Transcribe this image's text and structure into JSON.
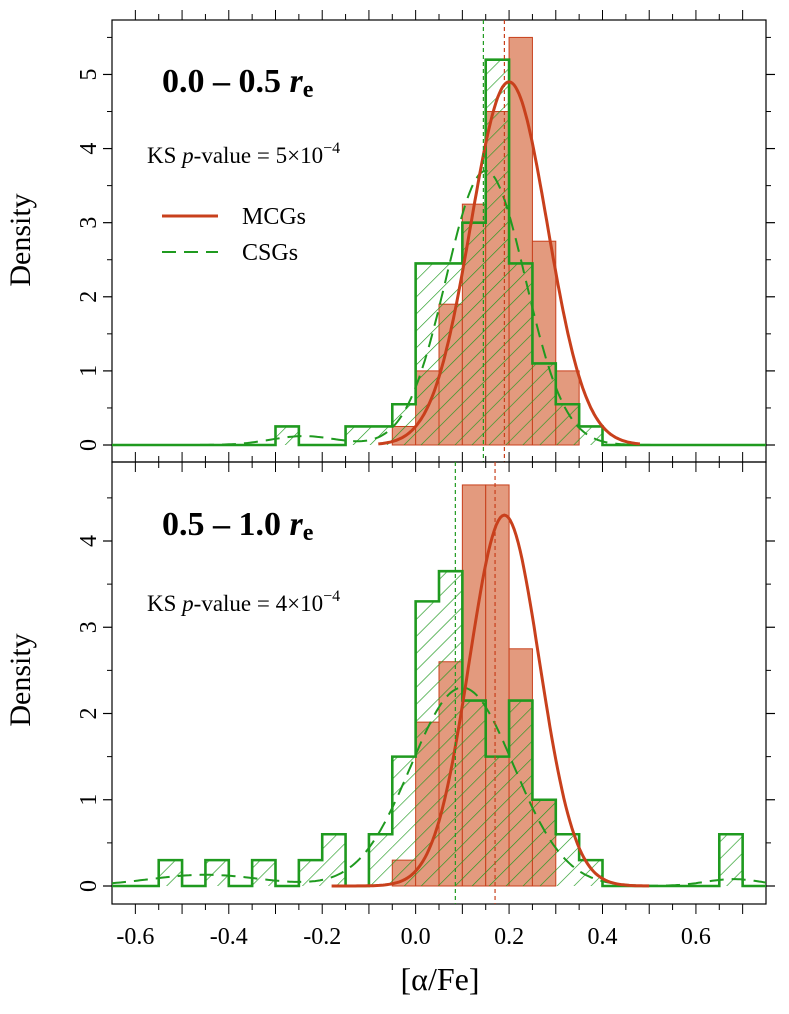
{
  "chart_data": {
    "type": "histogram",
    "xlabel": "[α/Fe]",
    "ylabel": "Density",
    "xlim": [
      -0.65,
      0.75
    ],
    "x_ticks": [
      "-0.6",
      "-0.4",
      "-0.2",
      "0.0",
      "0.2",
      "0.4",
      "0.6"
    ],
    "x_tick_values": [
      -0.6,
      -0.4,
      -0.2,
      0.0,
      0.2,
      0.4,
      0.6
    ],
    "bin_width": 0.05,
    "colors": {
      "mcg": "#c8401c",
      "mcg_fill": "#e39a7e",
      "csg": "#1f9a1f"
    },
    "legend": [
      {
        "name": "MCGs",
        "style": "solid"
      },
      {
        "name": "CSGs",
        "style": "dashed"
      }
    ],
    "panels": [
      {
        "title_main": "0.0 – 0.5",
        "title_r": "r",
        "title_sub": "e",
        "ks_prefix": "KS",
        "ks_p": "p",
        "ks_mid": "-value = 5×10",
        "ks_exp": "−4",
        "ylim": [
          0,
          5.6
        ],
        "y_ticks": [
          "0",
          "1",
          "2",
          "3",
          "4",
          "5"
        ],
        "y_tick_values": [
          0,
          1,
          2,
          3,
          4,
          5
        ],
        "mcg_bins": [
          {
            "x0": -0.05,
            "d": 0.25
          },
          {
            "x0": 0.0,
            "d": 1.0
          },
          {
            "x0": 0.05,
            "d": 1.9
          },
          {
            "x0": 0.1,
            "d": 3.25
          },
          {
            "x0": 0.15,
            "d": 4.5
          },
          {
            "x0": 0.2,
            "d": 5.5
          },
          {
            "x0": 0.25,
            "d": 2.75
          },
          {
            "x0": 0.3,
            "d": 1.0
          },
          {
            "x0": 0.35,
            "d": 0.0
          }
        ],
        "csg_bins": [
          {
            "x0": -0.3,
            "d": 0.25
          },
          {
            "x0": -0.25,
            "d": 0.0
          },
          {
            "x0": -0.2,
            "d": 0.0
          },
          {
            "x0": -0.15,
            "d": 0.25
          },
          {
            "x0": -0.1,
            "d": 0.25
          },
          {
            "x0": -0.05,
            "d": 0.55
          },
          {
            "x0": 0.0,
            "d": 2.45
          },
          {
            "x0": 0.05,
            "d": 2.45
          },
          {
            "x0": 0.1,
            "d": 3.0
          },
          {
            "x0": 0.15,
            "d": 5.2
          },
          {
            "x0": 0.2,
            "d": 2.45
          },
          {
            "x0": 0.25,
            "d": 1.1
          },
          {
            "x0": 0.3,
            "d": 0.55
          },
          {
            "x0": 0.35,
            "d": 0.25
          }
        ],
        "mcg_fit": {
          "mean": 0.2,
          "sd": 0.082,
          "peak": 4.9,
          "x_range": [
            -0.08,
            0.48
          ]
        },
        "csg_kde": [
          {
            "mu": 0.15,
            "sd": 0.085,
            "amp": 3.7
          },
          {
            "mu": -0.24,
            "sd": 0.07,
            "amp": 0.12
          }
        ],
        "mcg_median": 0.19,
        "csg_median": 0.145
      },
      {
        "title_main": "0.5 – 1.0",
        "title_r": "r",
        "title_sub": "e",
        "ks_prefix": "KS",
        "ks_p": "p",
        "ks_mid": "-value = 4×10",
        "ks_exp": "−4",
        "ylim": [
          0,
          4.8
        ],
        "y_ticks": [
          "0",
          "1",
          "2",
          "3",
          "4"
        ],
        "y_tick_values": [
          0,
          1,
          2,
          3,
          4
        ],
        "mcg_bins": [
          {
            "x0": -0.05,
            "d": 0.3
          },
          {
            "x0": 0.0,
            "d": 1.9
          },
          {
            "x0": 0.05,
            "d": 2.6
          },
          {
            "x0": 0.1,
            "d": 4.65
          },
          {
            "x0": 0.15,
            "d": 4.65
          },
          {
            "x0": 0.2,
            "d": 2.75
          },
          {
            "x0": 0.25,
            "d": 1.0
          },
          {
            "x0": 0.3,
            "d": 0.0
          },
          {
            "x0": 0.35,
            "d": 0.0
          }
        ],
        "csg_bins": [
          {
            "x0": -0.55,
            "d": 0.3
          },
          {
            "x0": -0.5,
            "d": 0.0
          },
          {
            "x0": -0.45,
            "d": 0.3
          },
          {
            "x0": -0.4,
            "d": 0.0
          },
          {
            "x0": -0.35,
            "d": 0.3
          },
          {
            "x0": -0.3,
            "d": 0.0
          },
          {
            "x0": -0.25,
            "d": 0.3
          },
          {
            "x0": -0.2,
            "d": 0.6
          },
          {
            "x0": -0.15,
            "d": 0.0
          },
          {
            "x0": -0.1,
            "d": 0.6
          },
          {
            "x0": -0.05,
            "d": 1.5
          },
          {
            "x0": 0.0,
            "d": 3.3
          },
          {
            "x0": 0.05,
            "d": 3.65
          },
          {
            "x0": 0.1,
            "d": 2.15
          },
          {
            "x0": 0.15,
            "d": 1.5
          },
          {
            "x0": 0.2,
            "d": 2.15
          },
          {
            "x0": 0.25,
            "d": 1.0
          },
          {
            "x0": 0.3,
            "d": 0.6
          },
          {
            "x0": 0.35,
            "d": 0.3
          },
          {
            "x0": 0.4,
            "d": 0.0
          },
          {
            "x0": 0.45,
            "d": 0.0
          },
          {
            "x0": 0.5,
            "d": 0.0
          },
          {
            "x0": 0.55,
            "d": 0.0
          },
          {
            "x0": 0.6,
            "d": 0.0
          },
          {
            "x0": 0.65,
            "d": 0.6
          }
        ],
        "mcg_fit": {
          "mean": 0.19,
          "sd": 0.075,
          "peak": 4.3,
          "x_range": [
            -0.18,
            0.5
          ]
        },
        "csg_kde": [
          {
            "mu": 0.1,
            "sd": 0.11,
            "amp": 2.3
          },
          {
            "mu": -0.45,
            "sd": 0.12,
            "amp": 0.13
          },
          {
            "mu": 0.68,
            "sd": 0.06,
            "amp": 0.08
          }
        ],
        "mcg_median": 0.17,
        "csg_median": 0.085
      }
    ]
  }
}
